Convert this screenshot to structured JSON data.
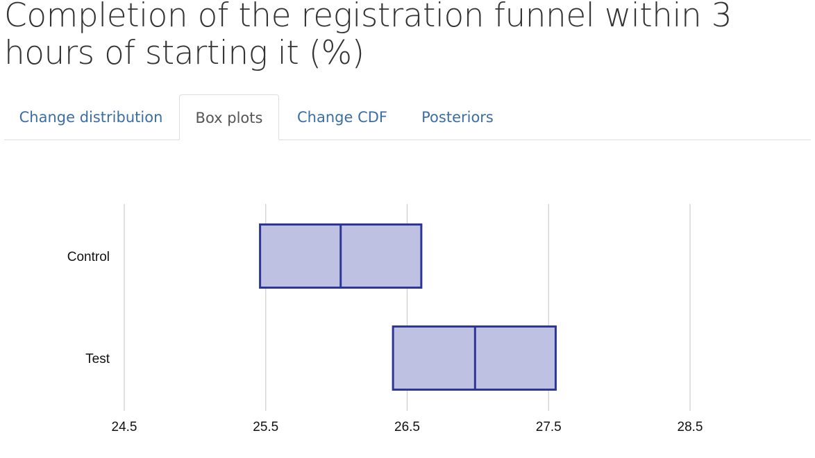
{
  "title": "Completion of the registration funnel within 3 hours of starting it (%)",
  "tabs": [
    {
      "label": "Change distribution",
      "active": false
    },
    {
      "label": "Box plots",
      "active": true
    },
    {
      "label": "Change CDF",
      "active": false
    },
    {
      "label": "Posteriors",
      "active": false
    }
  ],
  "colors": {
    "tab_link": "#3a6ea5",
    "box_fill": "#bfc1e2",
    "box_stroke": "#2d3597",
    "grid": "#cccccc"
  },
  "chart_data": {
    "type": "box",
    "orientation": "horizontal",
    "categories": [
      "Control",
      "Test"
    ],
    "boxes": [
      {
        "name": "Control",
        "q1": 25.46,
        "median": 26.03,
        "q3": 26.6
      },
      {
        "name": "Test",
        "q1": 26.4,
        "median": 26.98,
        "q3": 27.55
      }
    ],
    "xticks": [
      "24.5",
      "25.5",
      "26.5",
      "27.5",
      "28.5"
    ],
    "xlim": [
      24.5,
      28.5
    ],
    "grid": true,
    "legend": false
  }
}
